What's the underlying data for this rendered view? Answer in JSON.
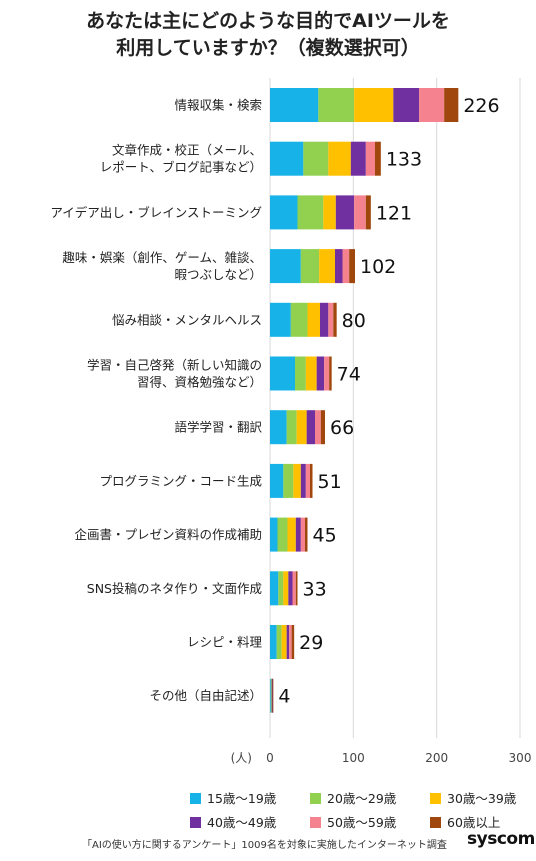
{
  "chart_data": {
    "type": "bar",
    "orientation": "horizontal",
    "stacked": true,
    "title_lines": [
      "あなたは主にどのような目的でAIツールを",
      "利用していますか？（複数選択可）"
    ],
    "xlabel": "(人)",
    "xlim": [
      0,
      300
    ],
    "xticks": [
      0,
      100,
      200,
      300
    ],
    "grid": true,
    "legend_position": "bottom",
    "categories": [
      [
        "情報収集・検索"
      ],
      [
        "文章作成・校正（メール、",
        "レポート、ブログ記事など）"
      ],
      [
        "アイデア出し・ブレインストーミング"
      ],
      [
        "趣味・娯楽（創作、ゲーム、雑談、",
        "暇つぶしなど）"
      ],
      [
        "悩み相談・メンタルヘルス"
      ],
      [
        "学習・自己啓発（新しい知識の",
        "習得、資格勉強など）"
      ],
      [
        "語学学習・翻訳"
      ],
      [
        "プログラミング・コード生成"
      ],
      [
        "企画書・プレゼン資料の作成補助"
      ],
      [
        "SNS投稿のネタ作り・文面作成"
      ],
      [
        "レシピ・料理"
      ],
      [
        "その他（自由記述）"
      ]
    ],
    "totals": [
      226,
      133,
      121,
      102,
      80,
      74,
      66,
      51,
      45,
      33,
      29,
      4
    ],
    "series": [
      {
        "name": "15歳〜19歳",
        "color": "#17b2e8",
        "values": [
          58,
          40,
          33,
          37,
          25,
          30,
          20,
          16,
          9,
          10,
          8,
          1
        ]
      },
      {
        "name": "20歳〜29歳",
        "color": "#92d050",
        "values": [
          43,
          30,
          31,
          22,
          20,
          13,
          12,
          12,
          12,
          6,
          6,
          1
        ]
      },
      {
        "name": "30歳〜39歳",
        "color": "#ffc000",
        "values": [
          47,
          27,
          15,
          19,
          15,
          13,
          12,
          9,
          10,
          6,
          6,
          0
        ]
      },
      {
        "name": "40歳〜49歳",
        "color": "#7030a0",
        "values": [
          31,
          18,
          22,
          9,
          10,
          9,
          10,
          6,
          6,
          5,
          3,
          1
        ]
      },
      {
        "name": "50歳〜59歳",
        "color": "#f4838f",
        "values": [
          30,
          11,
          14,
          8,
          6,
          6,
          7,
          5,
          5,
          4,
          3,
          0
        ]
      },
      {
        "name": "60歳以上",
        "color": "#a0470e",
        "values": [
          17,
          7,
          6,
          7,
          4,
          3,
          5,
          3,
          3,
          2,
          3,
          1
        ]
      }
    ]
  },
  "footer_note": "「AIの使い方に関するアンケート」1009名を対象に実施したインターネット調査",
  "brand": "syscom"
}
